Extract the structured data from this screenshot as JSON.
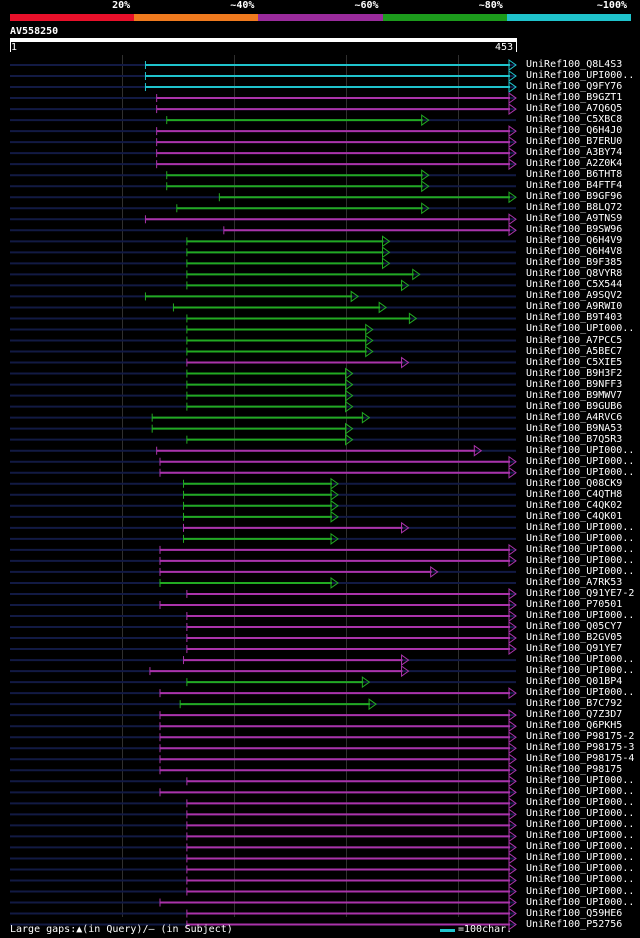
{
  "legend": {
    "labels": [
      "20%",
      "~40%",
      "~60%",
      "~80%",
      "~100%"
    ],
    "colors": [
      "#e8102a",
      "#f07a1e",
      "#9a2b9c",
      "#1c9b1c",
      "#1fc3cc"
    ]
  },
  "query": {
    "name": "AV558250",
    "start": "1",
    "end": "453",
    "length": 453
  },
  "colors": {
    "cyan": "#1fc3cc",
    "green": "#22aa22",
    "magenta": "#aa33aa",
    "dark": "#121a44"
  },
  "footer": {
    "gaps_text": "Large gaps:▲(in Query)/— (in Subject)",
    "scale_text": "=100char."
  },
  "hits": [
    {
      "label": "UniRef100_Q8L4S3",
      "color": "cyan",
      "start": 122,
      "end": 453
    },
    {
      "label": "UniRef100_UPI000..",
      "color": "cyan",
      "start": 122,
      "end": 453
    },
    {
      "label": "UniRef100_Q9FY76",
      "color": "cyan",
      "start": 122,
      "end": 453
    },
    {
      "label": "UniRef100_B9GZT1",
      "color": "magenta",
      "start": 132,
      "end": 453
    },
    {
      "label": "UniRef100_A7Q6Q5",
      "color": "magenta",
      "start": 132,
      "end": 453
    },
    {
      "label": "UniRef100_C5XBC8",
      "color": "green",
      "start": 141,
      "end": 375
    },
    {
      "label": "UniRef100_Q6H4J0",
      "color": "magenta",
      "start": 132,
      "end": 453
    },
    {
      "label": "UniRef100_B7ERU0",
      "color": "magenta",
      "start": 132,
      "end": 453
    },
    {
      "label": "UniRef100_A3BY74",
      "color": "magenta",
      "start": 132,
      "end": 453
    },
    {
      "label": "UniRef100_A2Z0K4",
      "color": "magenta",
      "start": 132,
      "end": 453
    },
    {
      "label": "UniRef100_B6THT8",
      "color": "green",
      "start": 141,
      "end": 375
    },
    {
      "label": "UniRef100_B4FTF4",
      "color": "green",
      "start": 141,
      "end": 375
    },
    {
      "label": "UniRef100_B9GF96",
      "color": "green",
      "start": 188,
      "end": 453
    },
    {
      "label": "UniRef100_B8LQ72",
      "color": "green",
      "start": 150,
      "end": 375
    },
    {
      "label": "UniRef100_A9TNS9",
      "color": "magenta",
      "start": 122,
      "end": 453
    },
    {
      "label": "UniRef100_B9SW96",
      "color": "magenta",
      "start": 192,
      "end": 453
    },
    {
      "label": "UniRef100_Q6H4V9",
      "color": "green",
      "start": 159,
      "end": 340
    },
    {
      "label": "UniRef100_Q6H4V8",
      "color": "green",
      "start": 159,
      "end": 340
    },
    {
      "label": "UniRef100_B9F385",
      "color": "green",
      "start": 159,
      "end": 340
    },
    {
      "label": "UniRef100_Q8VYR8",
      "color": "green",
      "start": 159,
      "end": 367
    },
    {
      "label": "UniRef100_C5X544",
      "color": "green",
      "start": 159,
      "end": 357
    },
    {
      "label": "UniRef100_A9SQV2",
      "color": "green",
      "start": 122,
      "end": 312
    },
    {
      "label": "UniRef100_A9RWI0",
      "color": "green",
      "start": 147,
      "end": 337
    },
    {
      "label": "UniRef100_B9T403",
      "color": "green",
      "start": 159,
      "end": 364
    },
    {
      "label": "UniRef100_UPI000..",
      "color": "green",
      "start": 159,
      "end": 325
    },
    {
      "label": "UniRef100_A7PCC5",
      "color": "green",
      "start": 159,
      "end": 325
    },
    {
      "label": "UniRef100_A5BEC7",
      "color": "green",
      "start": 159,
      "end": 325
    },
    {
      "label": "UniRef100_C5XIE5",
      "color": "magenta",
      "start": 159,
      "end": 357
    },
    {
      "label": "UniRef100_B9H3F2",
      "color": "green",
      "start": 159,
      "end": 307
    },
    {
      "label": "UniRef100_B9NFF3",
      "color": "green",
      "start": 159,
      "end": 307
    },
    {
      "label": "UniRef100_B9MWV7",
      "color": "green",
      "start": 159,
      "end": 307
    },
    {
      "label": "UniRef100_B9GUB6",
      "color": "green",
      "start": 159,
      "end": 307
    },
    {
      "label": "UniRef100_A4RVC6",
      "color": "green",
      "start": 128,
      "end": 322
    },
    {
      "label": "UniRef100_B9NA53",
      "color": "green",
      "start": 128,
      "end": 307
    },
    {
      "label": "UniRef100_B7Q5R3",
      "color": "green",
      "start": 159,
      "end": 307
    },
    {
      "label": "UniRef100_UPI000..",
      "color": "magenta",
      "start": 132,
      "end": 422
    },
    {
      "label": "UniRef100_UPI000..",
      "color": "magenta",
      "start": 135,
      "end": 453
    },
    {
      "label": "UniRef100_UPI000..",
      "color": "magenta",
      "start": 135,
      "end": 453
    },
    {
      "label": "UniRef100_Q08CK9",
      "color": "green",
      "start": 156,
      "end": 294
    },
    {
      "label": "UniRef100_C4QTH8",
      "color": "green",
      "start": 156,
      "end": 294
    },
    {
      "label": "UniRef100_C4QK02",
      "color": "green",
      "start": 156,
      "end": 294
    },
    {
      "label": "UniRef100_C4QK01",
      "color": "green",
      "start": 156,
      "end": 294
    },
    {
      "label": "UniRef100_UPI000..",
      "color": "magenta",
      "start": 156,
      "end": 357
    },
    {
      "label": "UniRef100_UPI000..",
      "color": "green",
      "start": 156,
      "end": 294
    },
    {
      "label": "UniRef100_UPI000..",
      "color": "magenta",
      "start": 135,
      "end": 453
    },
    {
      "label": "UniRef100_UPI000..",
      "color": "magenta",
      "start": 135,
      "end": 453
    },
    {
      "label": "UniRef100_UPI000..",
      "color": "magenta",
      "start": 135,
      "end": 383
    },
    {
      "label": "UniRef100_A7RK53",
      "color": "green",
      "start": 135,
      "end": 294
    },
    {
      "label": "UniRef100_Q91YE7-2",
      "color": "magenta",
      "start": 159,
      "end": 453
    },
    {
      "label": "UniRef100_P70501",
      "color": "magenta",
      "start": 135,
      "end": 453
    },
    {
      "label": "UniRef100_UPI000..",
      "color": "magenta",
      "start": 159,
      "end": 453
    },
    {
      "label": "UniRef100_Q05CY7",
      "color": "magenta",
      "start": 159,
      "end": 453
    },
    {
      "label": "UniRef100_B2GV05",
      "color": "magenta",
      "start": 159,
      "end": 453
    },
    {
      "label": "UniRef100_Q91YE7",
      "color": "magenta",
      "start": 159,
      "end": 453
    },
    {
      "label": "UniRef100_UPI000..",
      "color": "magenta",
      "start": 156,
      "end": 357
    },
    {
      "label": "UniRef100_UPI000..",
      "color": "magenta",
      "start": 126,
      "end": 357
    },
    {
      "label": "UniRef100_Q01BP4",
      "color": "green",
      "start": 159,
      "end": 322
    },
    {
      "label": "UniRef100_UPI000..",
      "color": "magenta",
      "start": 135,
      "end": 453
    },
    {
      "label": "UniRef100_B7C792",
      "color": "green",
      "start": 153,
      "end": 328
    },
    {
      "label": "UniRef100_Q7Z3D7",
      "color": "magenta",
      "start": 135,
      "end": 453
    },
    {
      "label": "UniRef100_Q6PKH5",
      "color": "magenta",
      "start": 135,
      "end": 453
    },
    {
      "label": "UniRef100_P98175-2",
      "color": "magenta",
      "start": 135,
      "end": 453
    },
    {
      "label": "UniRef100_P98175-3",
      "color": "magenta",
      "start": 135,
      "end": 453
    },
    {
      "label": "UniRef100_P98175-4",
      "color": "magenta",
      "start": 135,
      "end": 453
    },
    {
      "label": "UniRef100_P98175",
      "color": "magenta",
      "start": 135,
      "end": 453
    },
    {
      "label": "UniRef100_UPI000..",
      "color": "magenta",
      "start": 159,
      "end": 453
    },
    {
      "label": "UniRef100_UPI000..",
      "color": "magenta",
      "start": 135,
      "end": 453
    },
    {
      "label": "UniRef100_UPI000..",
      "color": "magenta",
      "start": 159,
      "end": 453
    },
    {
      "label": "UniRef100_UPI000..",
      "color": "magenta",
      "start": 159,
      "end": 453
    },
    {
      "label": "UniRef100_UPI000..",
      "color": "magenta",
      "start": 159,
      "end": 453
    },
    {
      "label": "UniRef100_UPI000..",
      "color": "magenta",
      "start": 159,
      "end": 453
    },
    {
      "label": "UniRef100_UPI000..",
      "color": "magenta",
      "start": 159,
      "end": 453
    },
    {
      "label": "UniRef100_UPI000..",
      "color": "magenta",
      "start": 159,
      "end": 453
    },
    {
      "label": "UniRef100_UPI000..",
      "color": "magenta",
      "start": 159,
      "end": 453
    },
    {
      "label": "UniRef100_UPI000..",
      "color": "magenta",
      "start": 159,
      "end": 453
    },
    {
      "label": "UniRef100_UPI000..",
      "color": "magenta",
      "start": 159,
      "end": 453
    },
    {
      "label": "UniRef100_UPI000..",
      "color": "magenta",
      "start": 135,
      "end": 453
    },
    {
      "label": "UniRef100_Q59HE6",
      "color": "magenta",
      "start": 159,
      "end": 453
    },
    {
      "label": "UniRef100_P52756",
      "color": "magenta",
      "start": 159,
      "end": 453
    }
  ]
}
